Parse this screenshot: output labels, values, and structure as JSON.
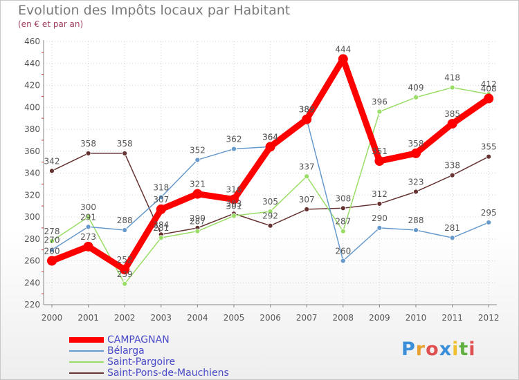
{
  "header": {
    "title": "Evolution des Impôts locaux par Habitant",
    "subtitle": "(en € et par an)"
  },
  "logo": {
    "letters": [
      "P",
      "r",
      "o",
      "x",
      "i",
      "t",
      "i"
    ],
    "colors": [
      "#3a8fd8",
      "#e8a030",
      "#e05050",
      "#3a8fd8",
      "#f0c030",
      "#60b040",
      "#e05050"
    ]
  },
  "chart_data": {
    "type": "line",
    "title": "Evolution des Impôts locaux par Habitant",
    "subtitle": "(en € et par an)",
    "xlabel": "",
    "ylabel": "",
    "categories": [
      "2000",
      "2001",
      "2002",
      "2003",
      "2004",
      "2005",
      "2006",
      "2007",
      "2008",
      "2009",
      "2010",
      "2011",
      "2012"
    ],
    "ylim": [
      220,
      460
    ],
    "yticks": [
      220,
      240,
      260,
      280,
      300,
      320,
      340,
      360,
      380,
      400,
      420,
      440,
      460
    ],
    "grid": true,
    "legend_position": "bottom-left",
    "series": [
      {
        "name": "CAMPAGNAN",
        "color": "#ff0000",
        "values": [
          260,
          273,
          252,
          307,
          321,
          316,
          364,
          389,
          444,
          351,
          358,
          385,
          408
        ]
      },
      {
        "name": "Bélarga",
        "color": "#6699cc",
        "values": [
          270,
          291,
          288,
          318,
          352,
          362,
          364,
          389,
          260,
          290,
          288,
          281,
          295
        ]
      },
      {
        "name": "Saint-Pargoire",
        "color": "#99dd66",
        "values": [
          278,
          300,
          239,
          281,
          287,
          301,
          305,
          337,
          287,
          396,
          409,
          418,
          412
        ]
      },
      {
        "name": "Saint-Pons-de-Mauchiens",
        "color": "#663333",
        "values": [
          342,
          358,
          358,
          284,
          290,
          303,
          292,
          307,
          308,
          312,
          323,
          338,
          355
        ]
      }
    ]
  }
}
